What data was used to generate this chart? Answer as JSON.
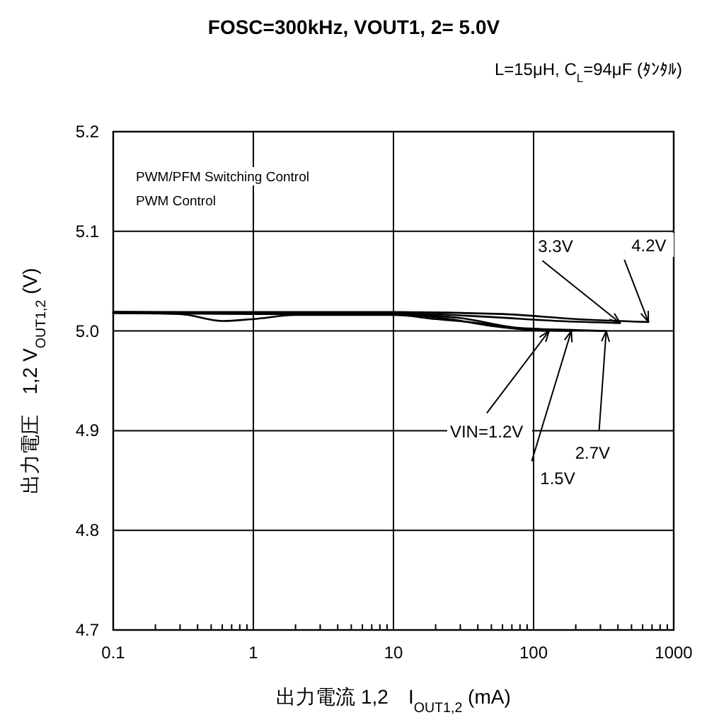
{
  "chart_data": {
    "type": "line",
    "title": "FOSC=300kHz, VOUT1, 2= 5.0V",
    "subtitle": "L=15μH, C$_{L}$=94μF (ﾀﾝﾀﾙ)",
    "xlabel": "出力電流 1,2　I$_{OUT1,2}$ (mA)",
    "ylabel": "出力電圧　1,2  V$_{OUT1,2}$ (V)",
    "annotations": [
      "PWM/PFM Switching Control",
      "PWM  Control"
    ],
    "log": "x",
    "grid": true,
    "legend": false,
    "marker": "none",
    "line_style": "solid",
    "xlim": [
      0.1,
      1000
    ],
    "ylim": [
      4.7,
      5.2
    ],
    "xticks": [
      0.1,
      {
        "value": 0.2,
        "label": null
      },
      {
        "value": 0.3,
        "label": null
      },
      {
        "value": 0.4,
        "label": null
      },
      {
        "value": 0.5,
        "label": null
      },
      {
        "value": 0.6,
        "label": null
      },
      {
        "value": 0.7,
        "label": null
      },
      {
        "value": 0.8,
        "label": null
      },
      {
        "value": 0.9,
        "label": null
      },
      1,
      {
        "value": 2,
        "label": null
      },
      {
        "value": 3,
        "label": null
      },
      {
        "value": 4,
        "label": null
      },
      {
        "value": 5,
        "label": null
      },
      {
        "value": 6,
        "label": null
      },
      {
        "value": 7,
        "label": null
      },
      {
        "value": 8,
        "label": null
      },
      {
        "value": 9,
        "label": null
      },
      10,
      {
        "value": 20,
        "label": null
      },
      {
        "value": 30,
        "label": null
      },
      {
        "value": 40,
        "label": null
      },
      {
        "value": 50,
        "label": null
      },
      {
        "value": 60,
        "label": null
      },
      {
        "value": 70,
        "label": null
      },
      {
        "value": 80,
        "label": null
      },
      {
        "value": 90,
        "label": null
      },
      100,
      {
        "value": 200,
        "label": null
      },
      {
        "value": 300,
        "label": null
      },
      {
        "value": 400,
        "label": null
      },
      {
        "value": 500,
        "label": null
      },
      {
        "value": 600,
        "label": null
      },
      {
        "value": 700,
        "label": null
      },
      {
        "value": 800,
        "label": null
      },
      {
        "value": 900,
        "label": null
      },
      1000
    ],
    "yticks": [
      4.7,
      4.8,
      4.9,
      {
        "value": 5,
        "label": "5.0"
      },
      5.1,
      5.2
    ],
    "series": [
      {
        "name": "VIN=1.2V",
        "color": "#000000",
        "x": [
          0.1,
          0.3,
          0.6,
          1,
          2,
          10,
          20,
          40,
          80,
          129
        ],
        "values": [
          5.018,
          5.017,
          5.01,
          5.012,
          5.016,
          5.016,
          5.012,
          5.008,
          5.002,
          5.0
        ]
      },
      {
        "name": "1.5V",
        "color": "#000000",
        "x": [
          0.1,
          1,
          10,
          25,
          50,
          100,
          186
        ],
        "values": [
          5.018,
          5.017,
          5.017,
          5.012,
          5.005,
          5.001,
          5.0
        ]
      },
      {
        "name": "2.7V",
        "color": "#000000",
        "x": [
          0.1,
          1,
          10,
          30,
          80,
          200,
          330
        ],
        "values": [
          5.019,
          5.018,
          5.017,
          5.013,
          5.003,
          5.001,
          5.0
        ]
      },
      {
        "name": "3.3V",
        "color": "#000000",
        "x": [
          0.1,
          10,
          50,
          150,
          415
        ],
        "values": [
          5.019,
          5.018,
          5.014,
          5.01,
          5.008
        ]
      },
      {
        "name": "4.2V",
        "color": "#000000",
        "x": [
          0.1,
          10,
          60,
          200,
          660
        ],
        "values": [
          5.019,
          5.019,
          5.017,
          5.012,
          5.009
        ]
      }
    ]
  }
}
